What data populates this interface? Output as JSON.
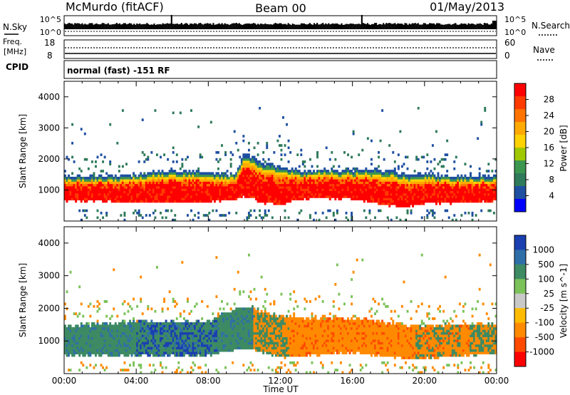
{
  "header": {
    "station": "McMurdo (fitACF)",
    "beam": "Beam 00",
    "date": "01/May/2013"
  },
  "top_panels": {
    "nsky_label": "N.Sky",
    "nsearch_label": "N.Search",
    "nsky_ticks": [
      "10^5",
      "10^0"
    ],
    "nsearch_ticks": [
      "10^5",
      "10^0"
    ],
    "freq_label_line1": "Freq.",
    "freq_label_line2": "[MHz]",
    "freq_ticks": [
      "18",
      "8"
    ],
    "nave_label": "Nave",
    "nave_ticks": [
      "60",
      "0"
    ],
    "cpid_label": "CPID",
    "cpid_text": "normal (fast) -151 RF"
  },
  "axes": {
    "ylabel": "Slant Range [km]",
    "yticks": [
      "4000",
      "3000",
      "2000",
      "1000"
    ],
    "xlabel": "Time UT",
    "xticks": [
      "00:00",
      "04:00",
      "08:00",
      "12:00",
      "16:00",
      "20:00",
      "00:00"
    ]
  },
  "power_colorbar": {
    "label": "Power [dB]",
    "ticks": [
      "28",
      "24",
      "20",
      "16",
      "12",
      "8",
      "4"
    ],
    "colors": [
      "#ff0000",
      "#ff3b00",
      "#ff7300",
      "#ffaa00",
      "#ffd200",
      "#a0c800",
      "#3c9650",
      "#2f7a5a",
      "#1e4fa0",
      "#0000ff"
    ]
  },
  "velocity_colorbar": {
    "label": "Velocity [m s^-1]",
    "ticks": [
      "1000",
      "500",
      "100",
      "25",
      "-25",
      "-100",
      "-500",
      "-1000"
    ],
    "colors": [
      "#1a3fb0",
      "#2f6fa8",
      "#3d8a63",
      "#7cc25a",
      "#c8c8c8",
      "#ffbb00",
      "#ff8a00",
      "#ff4a00",
      "#ff0000"
    ]
  },
  "chart_data": [
    {
      "type": "heatmap",
      "title": "",
      "quantity": "Power",
      "ylabel": "Slant Range [km]",
      "xlabel": "Time UT",
      "x_range_hours": [
        0,
        24
      ],
      "ylim": [
        0,
        4500
      ],
      "main_echo_band_km": [
        {
          "t": 0.0,
          "lo": 650,
          "hi": 1450
        },
        {
          "t": 2.0,
          "lo": 650,
          "hi": 1450
        },
        {
          "t": 4.0,
          "lo": 600,
          "hi": 1500
        },
        {
          "t": 6.0,
          "lo": 600,
          "hi": 1650
        },
        {
          "t": 8.0,
          "lo": 600,
          "hi": 1550
        },
        {
          "t": 9.5,
          "lo": 700,
          "hi": 1500
        },
        {
          "t": 10.0,
          "lo": 800,
          "hi": 2200
        },
        {
          "t": 11.0,
          "lo": 600,
          "hi": 1900
        },
        {
          "t": 12.0,
          "lo": 500,
          "hi": 1750
        },
        {
          "t": 13.0,
          "lo": 700,
          "hi": 1650
        },
        {
          "t": 14.0,
          "lo": 750,
          "hi": 1650
        },
        {
          "t": 16.0,
          "lo": 700,
          "hi": 1650
        },
        {
          "t": 18.0,
          "lo": 500,
          "hi": 1650
        },
        {
          "t": 19.0,
          "lo": 450,
          "hi": 1500
        },
        {
          "t": 20.0,
          "lo": 550,
          "hi": 1500
        },
        {
          "t": 22.0,
          "lo": 600,
          "hi": 1450
        },
        {
          "t": 24.0,
          "lo": 650,
          "hi": 1450
        }
      ]
    },
    {
      "type": "heatmap",
      "title": "",
      "quantity": "Velocity",
      "ylabel": "Slant Range [km]",
      "xlabel": "Time UT",
      "x_range_hours": [
        0,
        24
      ],
      "ylim": [
        0,
        4500
      ],
      "main_echo_band_km": [
        {
          "t": 0.0,
          "lo": 550,
          "hi": 1450
        },
        {
          "t": 4.0,
          "lo": 550,
          "hi": 1600
        },
        {
          "t": 8.0,
          "lo": 550,
          "hi": 1600
        },
        {
          "t": 10.0,
          "lo": 800,
          "hi": 2100
        },
        {
          "t": 12.0,
          "lo": 500,
          "hi": 1750
        },
        {
          "t": 16.0,
          "lo": 650,
          "hi": 1700
        },
        {
          "t": 19.0,
          "lo": 450,
          "hi": 1500
        },
        {
          "t": 24.0,
          "lo": 600,
          "hi": 1500
        }
      ]
    }
  ]
}
